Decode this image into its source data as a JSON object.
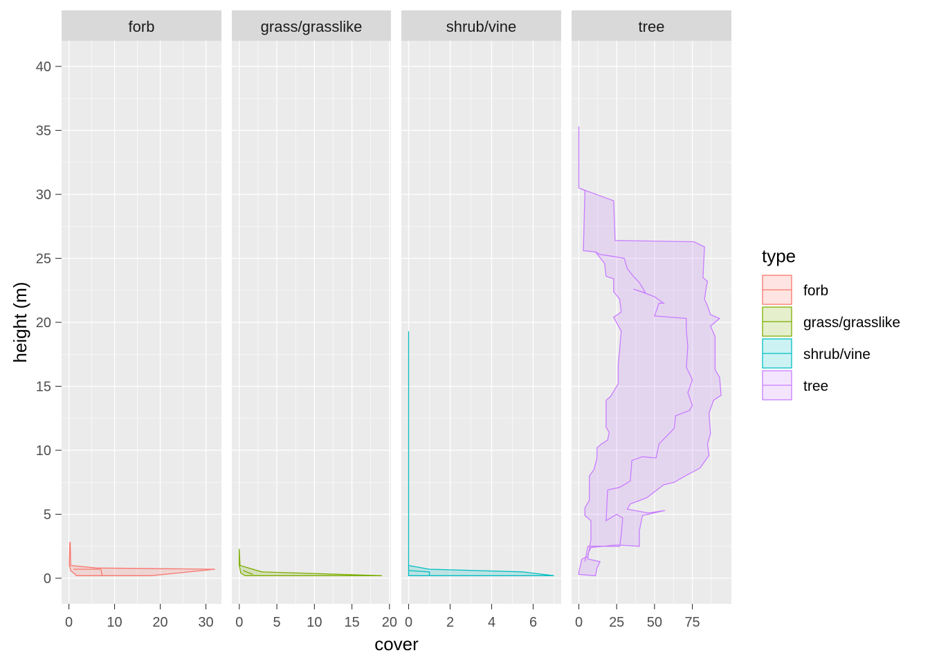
{
  "chart_data": {
    "type": "area",
    "facet_var": "type",
    "xlabel": "cover",
    "ylabel": "height (m)",
    "ylim": [
      -2,
      42
    ],
    "y_ticks": [
      0,
      5,
      10,
      15,
      20,
      25,
      30,
      35,
      40
    ],
    "legend": {
      "title": "type",
      "position": "right",
      "entries": [
        {
          "label": "forb",
          "color": "#F8766D"
        },
        {
          "label": "grass/grasslike",
          "color": "#7CAE00"
        },
        {
          "label": "shrub/vine",
          "color": "#00BFC4"
        },
        {
          "label": "tree",
          "color": "#C77CFF"
        }
      ]
    },
    "panels": [
      {
        "name": "forb",
        "color": "#F8766D",
        "xlim": [
          -1.6,
          33.4
        ],
        "x_ticks": [
          0,
          10,
          20,
          30
        ],
        "lower": [
          [
            0.2,
            2.8
          ],
          [
            0.1,
            1.0
          ],
          [
            0.4,
            0.6
          ],
          [
            1.7,
            0.2
          ]
        ],
        "upper": [
          [
            0.3,
            2.8
          ],
          [
            0.4,
            1.0
          ],
          [
            6.0,
            0.8
          ],
          [
            32.0,
            0.7
          ],
          [
            18.0,
            0.2
          ]
        ],
        "inner": [
          [
            1.0,
            0.7
          ],
          [
            7.0,
            0.7
          ],
          [
            7.3,
            0.2
          ]
        ]
      },
      {
        "name": "grass/grasslike",
        "color": "#7CAE00",
        "xlim": [
          -1.0,
          20.2
        ],
        "x_ticks": [
          0,
          5,
          10,
          15,
          20
        ],
        "lower": [
          [
            0.0,
            2.3
          ],
          [
            0.0,
            1.0
          ],
          [
            0.2,
            0.4
          ],
          [
            0.8,
            0.2
          ]
        ],
        "upper": [
          [
            0.0,
            2.3
          ],
          [
            0.1,
            1.0
          ],
          [
            3.0,
            0.5
          ],
          [
            19.0,
            0.2
          ]
        ],
        "inner": [
          [
            0.5,
            0.6
          ],
          [
            1.8,
            0.3
          ]
        ]
      },
      {
        "name": "shrub/vine",
        "color": "#00BFC4",
        "xlim": [
          -0.35,
          7.35
        ],
        "x_ticks": [
          0,
          2,
          4,
          6
        ],
        "lower": [
          [
            0.0,
            19.3
          ],
          [
            0.0,
            1.0
          ],
          [
            0.0,
            0.2
          ]
        ],
        "upper": [
          [
            0.0,
            19.3
          ],
          [
            0.0,
            1.0
          ],
          [
            1.0,
            0.7
          ],
          [
            5.5,
            0.5
          ],
          [
            7.0,
            0.2
          ]
        ],
        "inner": [
          [
            0.0,
            0.6
          ],
          [
            1.0,
            0.5
          ],
          [
            1.0,
            0.2
          ]
        ]
      },
      {
        "name": "tree",
        "color": "#C77CFF",
        "xlim": [
          -4.8,
          100.8
        ],
        "x_ticks": [
          0,
          25,
          50,
          75
        ],
        "lower": [
          [
            0,
            35.3
          ],
          [
            0,
            30.5
          ],
          [
            4,
            30.3
          ],
          [
            3,
            25.6
          ],
          [
            11,
            25.5
          ],
          [
            17,
            24.6
          ],
          [
            18,
            23.6
          ],
          [
            23,
            23.4
          ],
          [
            23,
            22.4
          ],
          [
            27,
            21.8
          ],
          [
            28,
            20.8
          ],
          [
            23,
            20.4
          ],
          [
            28,
            19.3
          ],
          [
            27,
            17.9
          ],
          [
            26,
            16.7
          ],
          [
            26,
            15.2
          ],
          [
            21,
            14.2
          ],
          [
            18,
            13.9
          ],
          [
            18,
            11.8
          ],
          [
            20,
            11.4
          ],
          [
            19,
            10.8
          ],
          [
            15,
            10.5
          ],
          [
            12,
            10.2
          ],
          [
            12,
            9.4
          ],
          [
            10,
            8.5
          ],
          [
            7,
            8.0
          ],
          [
            7,
            6.1
          ],
          [
            4,
            5.5
          ],
          [
            4,
            4.9
          ],
          [
            8,
            4.5
          ],
          [
            8,
            3.0
          ],
          [
            6,
            1.7
          ],
          [
            2,
            1.5
          ],
          [
            0,
            0.5
          ],
          [
            0,
            0.3
          ]
        ],
        "upper": [
          [
            0,
            35.3
          ],
          [
            0,
            30.5
          ],
          [
            23,
            29.5
          ],
          [
            24,
            26.4
          ],
          [
            76,
            26.3
          ],
          [
            83,
            25.9
          ],
          [
            82,
            23.5
          ],
          [
            85,
            23.2
          ],
          [
            84,
            22.6
          ],
          [
            83,
            21.8
          ],
          [
            85,
            21.3
          ],
          [
            87,
            20.6
          ],
          [
            93,
            20.3
          ],
          [
            87,
            19.7
          ],
          [
            90,
            18.9
          ],
          [
            90,
            16.3
          ],
          [
            93,
            15.7
          ],
          [
            94,
            14.3
          ],
          [
            89,
            13.9
          ],
          [
            86,
            12.9
          ],
          [
            87,
            11.3
          ],
          [
            85,
            10.5
          ],
          [
            86,
            9.6
          ],
          [
            80,
            8.6
          ],
          [
            72,
            8.1
          ],
          [
            63,
            7.5
          ],
          [
            56,
            7.3
          ],
          [
            45,
            6.3
          ],
          [
            34,
            5.8
          ],
          [
            32,
            5.4
          ],
          [
            46,
            5.1
          ],
          [
            57,
            5.3
          ],
          [
            42,
            4.9
          ],
          [
            40,
            3.7
          ],
          [
            40,
            2.5
          ],
          [
            25,
            2.6
          ],
          [
            8,
            2.4
          ],
          [
            6,
            1.9
          ],
          [
            6,
            1.5
          ],
          [
            14,
            1.3
          ],
          [
            12,
            0.8
          ],
          [
            11,
            0.2
          ]
        ],
        "inner": [
          [
            4,
            1.3
          ],
          [
            6,
            2.5
          ],
          [
            17,
            2.5
          ],
          [
            27,
            2.5
          ],
          [
            28,
            3.4
          ],
          [
            29,
            4.7
          ],
          [
            25,
            5.0
          ],
          [
            18,
            4.5
          ],
          [
            19,
            6.9
          ],
          [
            27,
            7.1
          ],
          [
            34,
            7.6
          ],
          [
            35,
            9.2
          ],
          [
            42,
            9.5
          ],
          [
            51,
            9.4
          ],
          [
            53,
            10.5
          ],
          [
            58,
            11.1
          ],
          [
            63,
            11.7
          ],
          [
            64,
            12.7
          ],
          [
            73,
            13.1
          ],
          [
            75,
            13.5
          ],
          [
            72,
            14.5
          ],
          [
            75,
            15.5
          ],
          [
            71,
            16.5
          ],
          [
            72,
            18.1
          ],
          [
            71,
            19.4
          ],
          [
            71,
            20.3
          ],
          [
            50,
            20.5
          ],
          [
            53,
            21.5
          ],
          [
            56,
            21.5
          ],
          [
            50,
            22.0
          ],
          [
            41,
            22.4
          ],
          [
            36,
            22.6
          ],
          [
            44,
            22.3
          ],
          [
            40,
            23.1
          ],
          [
            36,
            23.6
          ],
          [
            32,
            24.2
          ],
          [
            30,
            25.0
          ],
          [
            20,
            25.2
          ],
          [
            14,
            25.3
          ],
          [
            11,
            25.5
          ]
        ]
      }
    ]
  }
}
